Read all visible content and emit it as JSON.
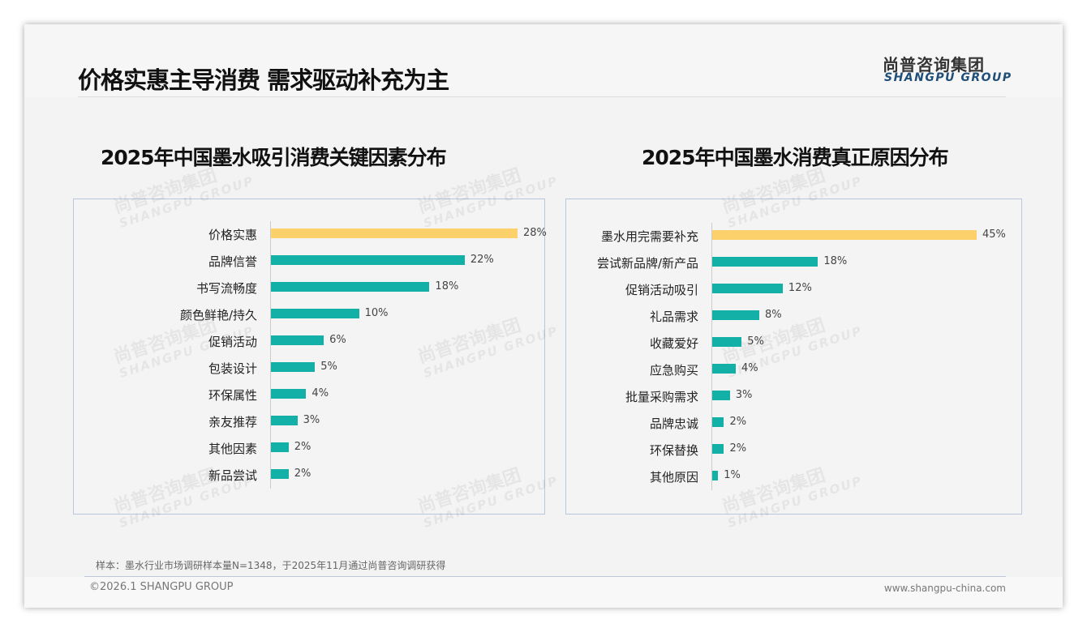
{
  "header": {
    "title": "价格实惠主导消费 需求驱动补充为主",
    "logo_cn": "尚普咨询集团",
    "logo_en": "SHANGPU GROUP"
  },
  "watermark": {
    "cn": "尚普咨询集团",
    "en": "SHANGPU GROUP"
  },
  "colors": {
    "highlight": "#fcd06a",
    "bar": "#12b0a6"
  },
  "chart_data": [
    {
      "type": "bar",
      "orientation": "horizontal",
      "title": "2025年中国墨水吸引消费关键因素分布",
      "unit": "%",
      "categories": [
        "价格实惠",
        "品牌信誉",
        "书写流畅度",
        "颜色鲜艳/持久",
        "促销活动",
        "包装设计",
        "环保属性",
        "亲友推荐",
        "其他因素",
        "新品尝试"
      ],
      "values": [
        28,
        22,
        18,
        10,
        6,
        5,
        4,
        3,
        2,
        2
      ],
      "labels": [
        "28%",
        "22%",
        "18%",
        "10%",
        "6%",
        "5%",
        "4%",
        "3%",
        "2%",
        "2%"
      ]
    },
    {
      "type": "bar",
      "orientation": "horizontal",
      "title": "2025年中国墨水消费真正原因分布",
      "unit": "%",
      "categories": [
        "墨水用完需要补充",
        "尝试新品牌/新产品",
        "促销活动吸引",
        "礼品需求",
        "收藏爱好",
        "应急购买",
        "批量采购需求",
        "品牌忠诚",
        "环保替换",
        "其他原因"
      ],
      "values": [
        45,
        18,
        12,
        8,
        5,
        4,
        3,
        2,
        2,
        1
      ],
      "labels": [
        "45%",
        "18%",
        "12%",
        "8%",
        "5%",
        "4%",
        "3%",
        "2%",
        "2%",
        "1%"
      ]
    }
  ],
  "footer": {
    "note": "样本：墨水行业市场调研样本量N=1348，于2025年11月通过尚普咨询调研获得",
    "copyright": "©2026.1 SHANGPU GROUP",
    "website": "www.shangpu-china.com"
  }
}
